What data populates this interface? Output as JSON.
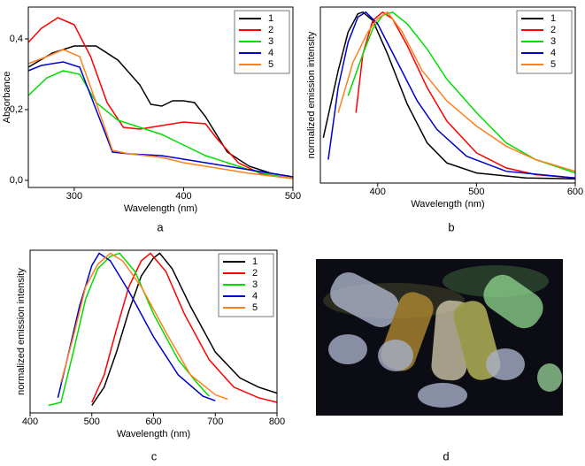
{
  "chart_data": [
    {
      "type": "line",
      "caption": "a",
      "xlabel": "Wavelength (nm)",
      "ylabel": "Absorbance",
      "xlim": [
        258,
        500
      ],
      "xticks": [
        300,
        400,
        500
      ],
      "ylim": [
        -0.02,
        0.49
      ],
      "yticks": [
        {
          "value": 0,
          "label": "0,0"
        },
        {
          "value": 0.2,
          "label": "0,2"
        },
        {
          "value": 0.4,
          "label": "0,4"
        }
      ],
      "legend": "upper right",
      "series": [
        {
          "name": "1",
          "color": "#000000",
          "x": [
            258,
            280,
            300,
            320,
            340,
            360,
            370,
            380,
            390,
            400,
            410,
            420,
            440,
            460,
            480,
            500
          ],
          "values": [
            0.32,
            0.36,
            0.38,
            0.38,
            0.34,
            0.27,
            0.215,
            0.21,
            0.225,
            0.225,
            0.22,
            0.18,
            0.08,
            0.04,
            0.02,
            0.01
          ]
        },
        {
          "name": "2",
          "color": "#ff0000",
          "x": [
            258,
            270,
            285,
            300,
            315,
            330,
            345,
            360,
            380,
            400,
            420,
            430,
            450,
            470,
            500
          ],
          "values": [
            0.39,
            0.43,
            0.46,
            0.44,
            0.35,
            0.22,
            0.15,
            0.145,
            0.155,
            0.165,
            0.16,
            0.12,
            0.05,
            0.02,
            0.005
          ]
        },
        {
          "name": "3",
          "color": "#00dd00",
          "x": [
            258,
            275,
            290,
            305,
            320,
            340,
            360,
            380,
            400,
            420,
            440,
            460,
            480,
            500
          ],
          "values": [
            0.24,
            0.29,
            0.31,
            0.3,
            0.22,
            0.17,
            0.15,
            0.13,
            0.1,
            0.07,
            0.05,
            0.03,
            0.015,
            0.005
          ]
        },
        {
          "name": "4",
          "color": "#0000cc",
          "x": [
            258,
            270,
            290,
            305,
            320,
            335,
            350,
            380,
            400,
            430,
            460,
            500
          ],
          "values": [
            0.31,
            0.325,
            0.335,
            0.32,
            0.2,
            0.08,
            0.075,
            0.07,
            0.06,
            0.045,
            0.03,
            0.01
          ]
        },
        {
          "name": "5",
          "color": "#ff8020",
          "x": [
            258,
            275,
            290,
            305,
            320,
            335,
            350,
            380,
            400,
            430,
            460,
            500
          ],
          "values": [
            0.33,
            0.35,
            0.37,
            0.35,
            0.22,
            0.085,
            0.075,
            0.065,
            0.05,
            0.035,
            0.02,
            0.005
          ]
        }
      ]
    },
    {
      "type": "line",
      "caption": "b",
      "xlabel": "Wavelength (nm)",
      "ylabel": "normalized emission intensity",
      "xlim": [
        342,
        600
      ],
      "xticks": [
        400,
        500,
        600
      ],
      "ylim": [
        -0.02,
        1.03
      ],
      "legend": "upper right",
      "series": [
        {
          "name": "1",
          "color": "#000000",
          "x": [
            345,
            360,
            370,
            380,
            385,
            395,
            410,
            430,
            450,
            470,
            500,
            550,
            600
          ],
          "values": [
            0.25,
            0.65,
            0.88,
            0.99,
            1.0,
            0.95,
            0.75,
            0.45,
            0.22,
            0.1,
            0.04,
            0.01,
            0.005
          ]
        },
        {
          "name": "2",
          "color": "#ff0000",
          "x": [
            378,
            385,
            395,
            405,
            415,
            430,
            450,
            470,
            500,
            530,
            560,
            600
          ],
          "values": [
            0.4,
            0.75,
            0.95,
            1.0,
            0.96,
            0.8,
            0.55,
            0.35,
            0.16,
            0.07,
            0.03,
            0.01
          ]
        },
        {
          "name": "3",
          "color": "#00dd00",
          "x": [
            370,
            385,
            395,
            405,
            415,
            430,
            450,
            470,
            500,
            530,
            560,
            600
          ],
          "values": [
            0.5,
            0.75,
            0.9,
            0.98,
            1.0,
            0.93,
            0.78,
            0.6,
            0.4,
            0.22,
            0.12,
            0.04
          ]
        },
        {
          "name": "4",
          "color": "#0000cc",
          "x": [
            350,
            360,
            370,
            380,
            388,
            400,
            420,
            440,
            460,
            490,
            530,
            600
          ],
          "values": [
            0.12,
            0.55,
            0.82,
            0.97,
            1.0,
            0.93,
            0.7,
            0.47,
            0.3,
            0.14,
            0.05,
            0.01
          ]
        },
        {
          "name": "5",
          "color": "#ff8020",
          "x": [
            360,
            375,
            390,
            400,
            410,
            425,
            445,
            470,
            500,
            530,
            560,
            600
          ],
          "values": [
            0.4,
            0.7,
            0.88,
            0.96,
            1.0,
            0.88,
            0.65,
            0.47,
            0.32,
            0.2,
            0.12,
            0.05
          ]
        }
      ]
    },
    {
      "type": "line",
      "caption": "c",
      "xlabel": "Wavelength (nm)",
      "ylabel": "normalized emission intensity",
      "xlim": [
        400,
        800
      ],
      "xticks": [
        400,
        500,
        600,
        700,
        800
      ],
      "ylim": [
        -0.05,
        1.02
      ],
      "legend": "upper right",
      "series": [
        {
          "name": "1",
          "color": "#000000",
          "x": [
            500,
            520,
            540,
            560,
            580,
            600,
            610,
            630,
            660,
            700,
            740,
            770,
            800
          ],
          "values": [
            0.0,
            0.12,
            0.35,
            0.62,
            0.85,
            0.97,
            1.0,
            0.9,
            0.65,
            0.35,
            0.18,
            0.12,
            0.08
          ]
        },
        {
          "name": "2",
          "color": "#ff0000",
          "x": [
            500,
            520,
            540,
            560,
            580,
            595,
            620,
            650,
            690,
            730,
            770,
            800
          ],
          "values": [
            0.02,
            0.2,
            0.5,
            0.78,
            0.95,
            1.0,
            0.88,
            0.6,
            0.3,
            0.12,
            0.05,
            0.02
          ]
        },
        {
          "name": "3",
          "color": "#00dd00",
          "x": [
            430,
            450,
            470,
            490,
            510,
            530,
            545,
            570,
            600,
            640,
            670,
            690
          ],
          "values": [
            0.0,
            0.02,
            0.35,
            0.7,
            0.9,
            0.98,
            1.0,
            0.88,
            0.6,
            0.3,
            0.15,
            0.06
          ]
        },
        {
          "name": "4",
          "color": "#0000cc",
          "x": [
            445,
            460,
            480,
            500,
            512,
            530,
            560,
            600,
            640,
            680,
            700
          ],
          "values": [
            0.05,
            0.3,
            0.65,
            0.92,
            1.0,
            0.95,
            0.75,
            0.45,
            0.2,
            0.06,
            0.03
          ]
        },
        {
          "name": "5",
          "color": "#ff8020",
          "x": [
            450,
            470,
            490,
            510,
            530,
            550,
            580,
            620,
            660,
            700,
            720
          ],
          "values": [
            0.15,
            0.45,
            0.78,
            0.93,
            1.0,
            0.95,
            0.78,
            0.48,
            0.2,
            0.07,
            0.04
          ]
        }
      ]
    }
  ],
  "photo": {
    "caption": "d"
  }
}
